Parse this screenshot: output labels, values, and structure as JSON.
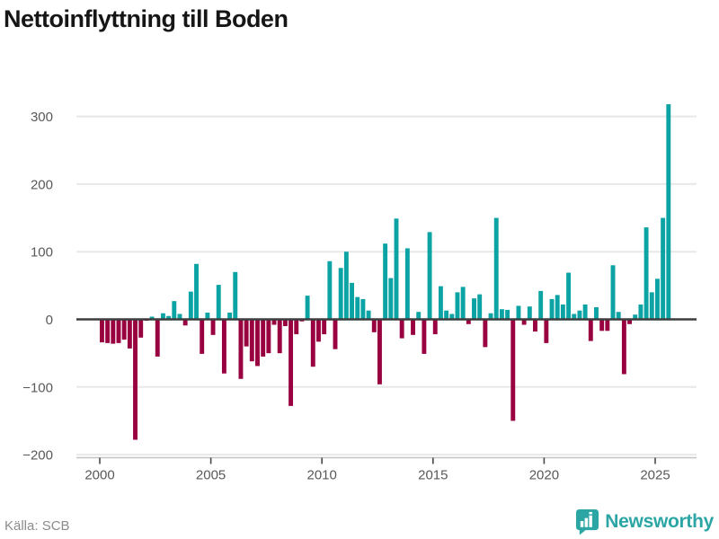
{
  "page": {
    "title": "Nettoinflyttning till Boden",
    "source": "Källa: SCB",
    "brand": "Newsworthy"
  },
  "chart_data": {
    "type": "bar",
    "title": "Nettoinflyttning till Boden",
    "frequency": "quarterly",
    "start_period": "2000 Q1",
    "end_period": "2025 Q3",
    "x_axis": {
      "tick_labels": [
        "2000",
        "2005",
        "2010",
        "2015",
        "2020",
        "2025"
      ],
      "tick_years": [
        2000,
        2005,
        2010,
        2015,
        2020,
        2025
      ]
    },
    "y_axis": {
      "tick_labels": [
        "300",
        "200",
        "100",
        "0",
        "−100",
        "−200"
      ],
      "tick_values": [
        300,
        200,
        100,
        0,
        -100,
        -200
      ],
      "range": [
        -200,
        330
      ],
      "gridlines": true
    },
    "values": [
      -34,
      -35,
      -36,
      -35,
      -30,
      -43,
      -178,
      -27,
      -2,
      4,
      -55,
      9,
      5,
      27,
      8,
      -9,
      41,
      82,
      -51,
      10,
      -23,
      51,
      -80,
      10,
      70,
      -88,
      -40,
      -62,
      -69,
      -55,
      -50,
      -8,
      -50,
      -10,
      -128,
      -22,
      -3,
      35,
      -70,
      -33,
      -22,
      86,
      -44,
      76,
      100,
      54,
      33,
      30,
      13,
      -19,
      -96,
      112,
      61,
      149,
      -28,
      105,
      -23,
      11,
      -51,
      129,
      -22,
      49,
      13,
      8,
      40,
      48,
      -7,
      31,
      37,
      -41,
      9,
      150,
      15,
      14,
      -150,
      20,
      -8,
      19,
      -18,
      42,
      -35,
      30,
      36,
      22,
      69,
      8,
      13,
      22,
      -32,
      18,
      -17,
      -17,
      80,
      11,
      -81,
      -7,
      7,
      22,
      136,
      40,
      60,
      150,
      318
    ],
    "colors": {
      "positive": "#0ba3a3",
      "negative": "#990040",
      "zero_line": "#3d3d3d",
      "gridline": "#e8e8e8",
      "axis_line": "#c4c4c4",
      "tick": "#4a4a4a",
      "brand_teal": "#2ba6a4"
    },
    "legend": "none"
  }
}
